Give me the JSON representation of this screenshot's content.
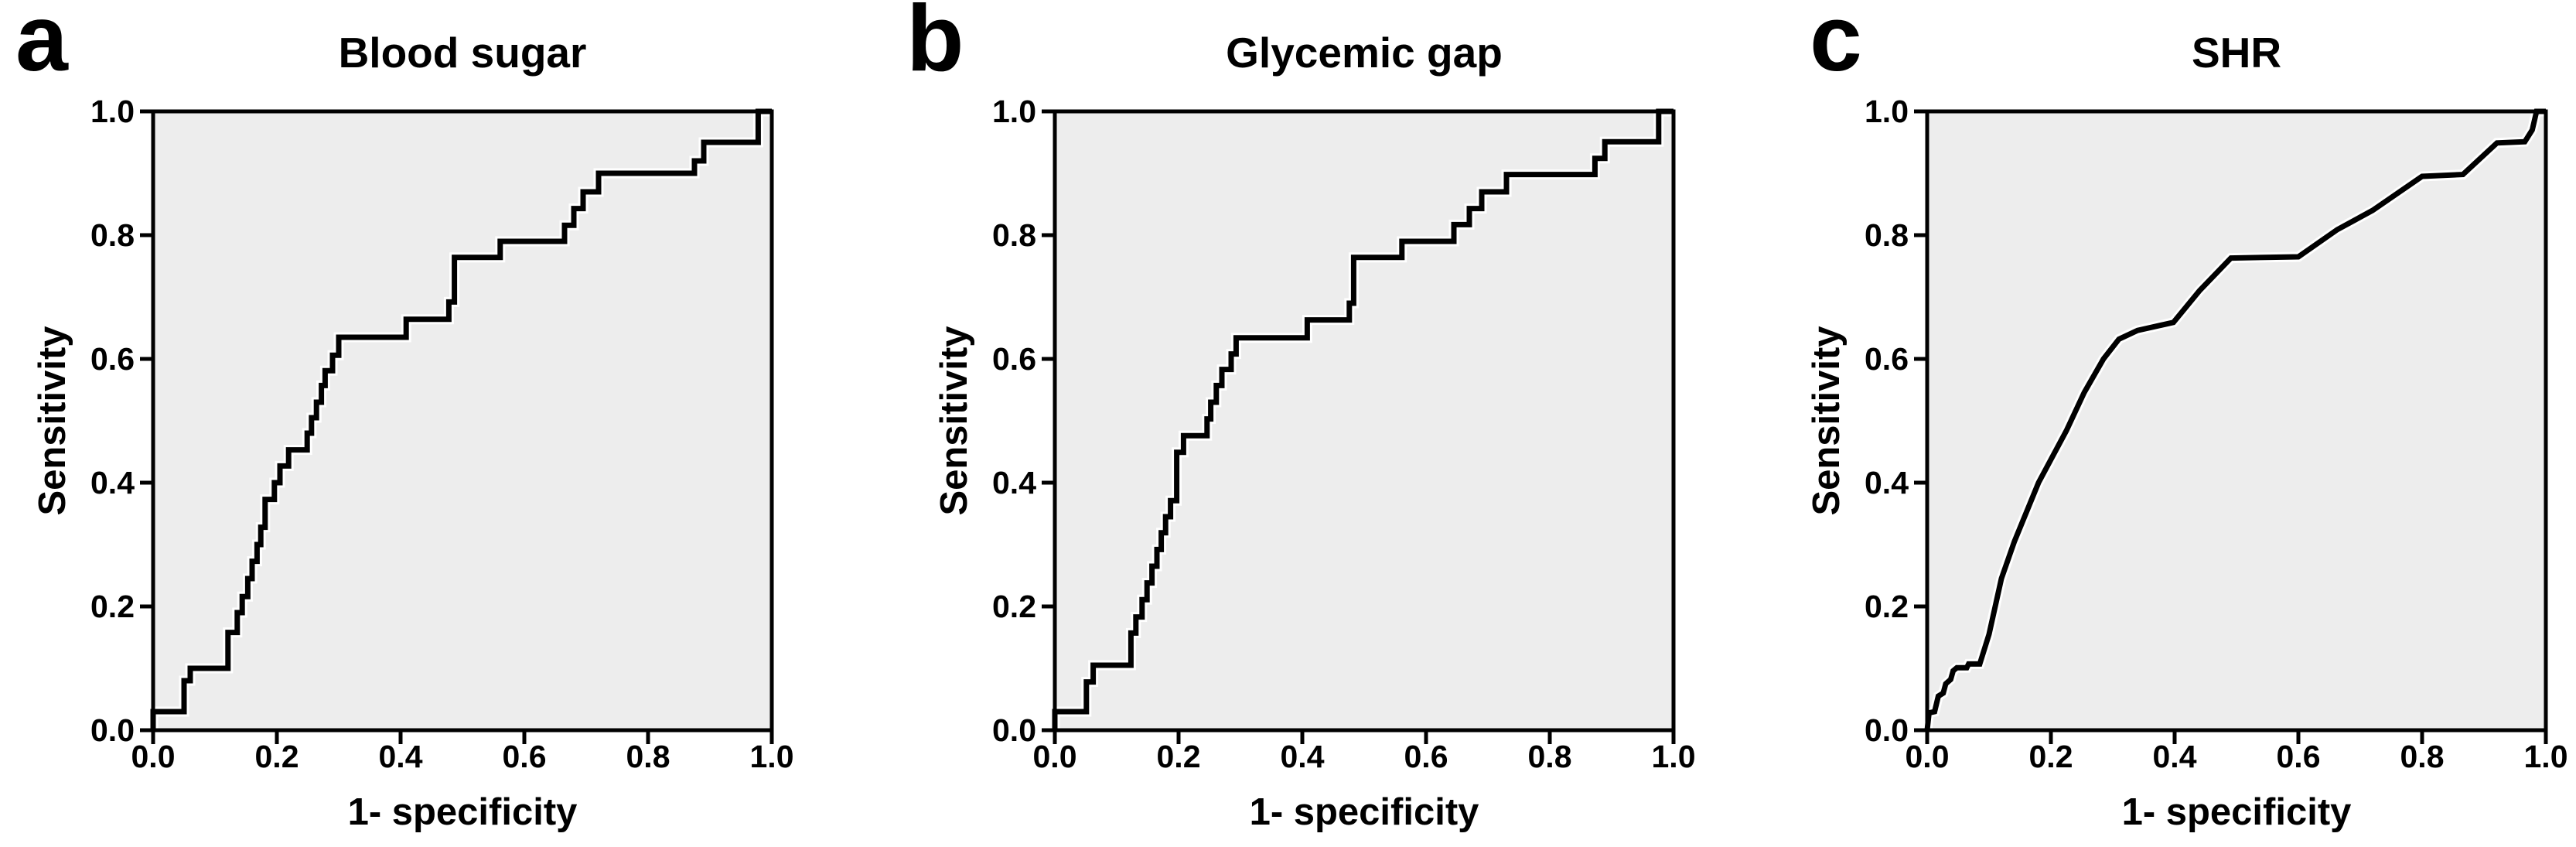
{
  "figure": {
    "background": "#ffffff",
    "plot_bg_color": "#ededed",
    "line_color": "#000000",
    "frame_color": "#000000"
  },
  "chart_data": [
    {
      "type": "line",
      "subtype": "roc-step-curve",
      "panel_letter": "a",
      "title": "Blood sugar",
      "xlabel": "1- specificity",
      "ylabel": "Sensitivity",
      "xlim": [
        0.0,
        1.0
      ],
      "ylim": [
        0.0,
        1.0
      ],
      "x_tick_labels": [
        "0.0",
        "0.2",
        "0.4",
        "0.6",
        "0.8",
        "1.0"
      ],
      "y_tick_labels": [
        "0.0",
        "0.2",
        "0.4",
        "0.6",
        "0.8",
        "1.0"
      ],
      "grid": false,
      "legend": null,
      "series": [
        {
          "name": "ROC curve",
          "points": [
            [
              0,
              0
            ],
            [
              0,
              0.03
            ],
            [
              0.05,
              0.03
            ],
            [
              0.05,
              0.08
            ],
            [
              0.06,
              0.08
            ],
            [
              0.06,
              0.1
            ],
            [
              0.121,
              0.1
            ],
            [
              0.121,
              0.158
            ],
            [
              0.136,
              0.158
            ],
            [
              0.136,
              0.19
            ],
            [
              0.144,
              0.19
            ],
            [
              0.144,
              0.216
            ],
            [
              0.153,
              0.216
            ],
            [
              0.153,
              0.245
            ],
            [
              0.16,
              0.245
            ],
            [
              0.16,
              0.273
            ],
            [
              0.168,
              0.273
            ],
            [
              0.168,
              0.3
            ],
            [
              0.174,
              0.3
            ],
            [
              0.174,
              0.328
            ],
            [
              0.181,
              0.328
            ],
            [
              0.181,
              0.373
            ],
            [
              0.196,
              0.373
            ],
            [
              0.196,
              0.4
            ],
            [
              0.205,
              0.4
            ],
            [
              0.205,
              0.427
            ],
            [
              0.219,
              0.427
            ],
            [
              0.219,
              0.453
            ],
            [
              0.249,
              0.453
            ],
            [
              0.249,
              0.48
            ],
            [
              0.256,
              0.48
            ],
            [
              0.256,
              0.505
            ],
            [
              0.264,
              0.505
            ],
            [
              0.264,
              0.53
            ],
            [
              0.272,
              0.53
            ],
            [
              0.272,
              0.557
            ],
            [
              0.278,
              0.557
            ],
            [
              0.278,
              0.581
            ],
            [
              0.29,
              0.581
            ],
            [
              0.29,
              0.606
            ],
            [
              0.3,
              0.606
            ],
            [
              0.3,
              0.635
            ],
            [
              0.409,
              0.635
            ],
            [
              0.409,
              0.664
            ],
            [
              0.478,
              0.664
            ],
            [
              0.478,
              0.692
            ],
            [
              0.487,
              0.692
            ],
            [
              0.487,
              0.764
            ],
            [
              0.561,
              0.764
            ],
            [
              0.561,
              0.79
            ],
            [
              0.665,
              0.79
            ],
            [
              0.665,
              0.816
            ],
            [
              0.68,
              0.816
            ],
            [
              0.68,
              0.843
            ],
            [
              0.695,
              0.843
            ],
            [
              0.695,
              0.87
            ],
            [
              0.72,
              0.87
            ],
            [
              0.72,
              0.9
            ],
            [
              0.875,
              0.9
            ],
            [
              0.875,
              0.92
            ],
            [
              0.89,
              0.92
            ],
            [
              0.89,
              0.95
            ],
            [
              0.978,
              0.95
            ],
            [
              0.978,
              1
            ],
            [
              1,
              1
            ]
          ]
        }
      ]
    },
    {
      "type": "line",
      "subtype": "roc-step-curve",
      "panel_letter": "b",
      "title": "Glycemic gap",
      "xlabel": "1- specificity",
      "ylabel": "Sensitivity",
      "xlim": [
        0.0,
        1.0
      ],
      "ylim": [
        0.0,
        1.0
      ],
      "x_tick_labels": [
        "0.0",
        "0.2",
        "0.4",
        "0.6",
        "0.8",
        "1.0"
      ],
      "y_tick_labels": [
        "0.0",
        "0.2",
        "0.4",
        "0.6",
        "0.8",
        "1.0"
      ],
      "grid": false,
      "legend": null,
      "series": [
        {
          "name": "ROC curve",
          "points": [
            [
              0,
              0
            ],
            [
              0,
              0.03
            ],
            [
              0.051,
              0.03
            ],
            [
              0.051,
              0.078
            ],
            [
              0.062,
              0.078
            ],
            [
              0.062,
              0.105
            ],
            [
              0.123,
              0.105
            ],
            [
              0.123,
              0.157
            ],
            [
              0.131,
              0.157
            ],
            [
              0.131,
              0.183
            ],
            [
              0.141,
              0.183
            ],
            [
              0.141,
              0.211
            ],
            [
              0.149,
              0.211
            ],
            [
              0.149,
              0.238
            ],
            [
              0.157,
              0.238
            ],
            [
              0.157,
              0.265
            ],
            [
              0.165,
              0.265
            ],
            [
              0.165,
              0.292
            ],
            [
              0.172,
              0.292
            ],
            [
              0.172,
              0.319
            ],
            [
              0.179,
              0.319
            ],
            [
              0.179,
              0.345
            ],
            [
              0.187,
              0.345
            ],
            [
              0.187,
              0.371
            ],
            [
              0.197,
              0.371
            ],
            [
              0.197,
              0.449
            ],
            [
              0.208,
              0.449
            ],
            [
              0.208,
              0.476
            ],
            [
              0.246,
              0.476
            ],
            [
              0.246,
              0.503
            ],
            [
              0.252,
              0.503
            ],
            [
              0.252,
              0.53
            ],
            [
              0.261,
              0.53
            ],
            [
              0.261,
              0.557
            ],
            [
              0.27,
              0.557
            ],
            [
              0.27,
              0.583
            ],
            [
              0.285,
              0.583
            ],
            [
              0.285,
              0.608
            ],
            [
              0.293,
              0.608
            ],
            [
              0.293,
              0.634
            ],
            [
              0.408,
              0.634
            ],
            [
              0.408,
              0.663
            ],
            [
              0.476,
              0.663
            ],
            [
              0.476,
              0.69
            ],
            [
              0.483,
              0.69
            ],
            [
              0.483,
              0.764
            ],
            [
              0.561,
              0.764
            ],
            [
              0.561,
              0.79
            ],
            [
              0.645,
              0.79
            ],
            [
              0.645,
              0.817
            ],
            [
              0.67,
              0.817
            ],
            [
              0.67,
              0.843
            ],
            [
              0.69,
              0.843
            ],
            [
              0.69,
              0.87
            ],
            [
              0.73,
              0.87
            ],
            [
              0.73,
              0.898
            ],
            [
              0.873,
              0.898
            ],
            [
              0.873,
              0.924
            ],
            [
              0.889,
              0.924
            ],
            [
              0.889,
              0.951
            ],
            [
              0.976,
              0.951
            ],
            [
              0.976,
              1
            ],
            [
              1,
              1
            ]
          ]
        }
      ]
    },
    {
      "type": "line",
      "subtype": "roc-smooth-curve",
      "panel_letter": "c",
      "title": "SHR",
      "xlabel": "1- specificity",
      "ylabel": "Sensitivity",
      "xlim": [
        0.0,
        1.0
      ],
      "ylim": [
        0.0,
        1.0
      ],
      "x_tick_labels": [
        "0.0",
        "0.2",
        "0.4",
        "0.6",
        "0.8",
        "1.0"
      ],
      "y_tick_labels": [
        "0.0",
        "0.2",
        "0.4",
        "0.6",
        "0.8",
        "1.0"
      ],
      "grid": false,
      "legend": null,
      "series": [
        {
          "name": "ROC curve",
          "points": [
            [
              0,
              0
            ],
            [
              0.003,
              0.028
            ],
            [
              0.012,
              0.03
            ],
            [
              0.018,
              0.055
            ],
            [
              0.026,
              0.06
            ],
            [
              0.03,
              0.075
            ],
            [
              0.038,
              0.082
            ],
            [
              0.042,
              0.096
            ],
            [
              0.048,
              0.101
            ],
            [
              0.064,
              0.101
            ],
            [
              0.067,
              0.107
            ],
            [
              0.085,
              0.107
            ],
            [
              0.1,
              0.155
            ],
            [
              0.12,
              0.245
            ],
            [
              0.141,
              0.305
            ],
            [
              0.18,
              0.4
            ],
            [
              0.225,
              0.484
            ],
            [
              0.254,
              0.546
            ],
            [
              0.285,
              0.6
            ],
            [
              0.31,
              0.632
            ],
            [
              0.34,
              0.646
            ],
            [
              0.398,
              0.659
            ],
            [
              0.44,
              0.71
            ],
            [
              0.491,
              0.763
            ],
            [
              0.6,
              0.765
            ],
            [
              0.663,
              0.809
            ],
            [
              0.72,
              0.84
            ],
            [
              0.8,
              0.895
            ],
            [
              0.866,
              0.898
            ],
            [
              0.921,
              0.949
            ],
            [
              0.966,
              0.951
            ],
            [
              0.978,
              0.97
            ],
            [
              0.985,
              1
            ],
            [
              1,
              1
            ]
          ]
        }
      ]
    }
  ]
}
